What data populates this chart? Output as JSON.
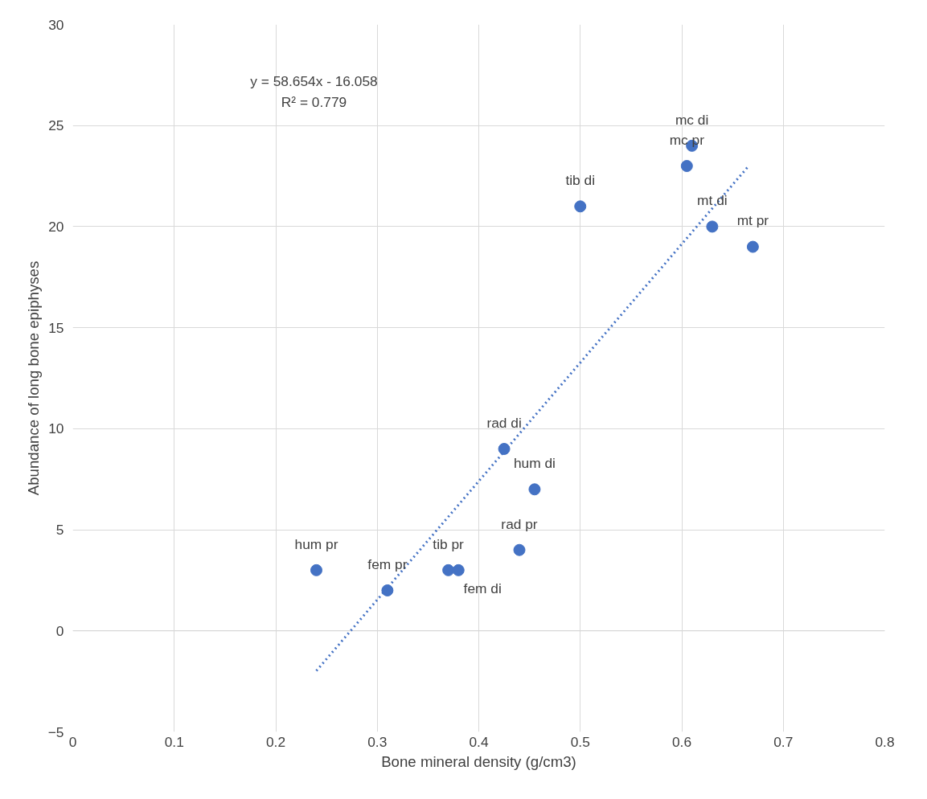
{
  "chart_data": {
    "type": "scatter",
    "xlabel": "Bone mineral density (g/cm3)",
    "ylabel": "Abundance of long bone epiphyses",
    "xlim": [
      0,
      0.8
    ],
    "xticks": [
      0,
      0.1,
      0.2,
      0.3,
      0.4,
      0.5,
      0.6,
      0.7,
      0.8
    ],
    "ylim": [
      -5,
      30
    ],
    "yticks": [
      -5,
      0,
      5,
      10,
      15,
      20,
      25,
      30
    ],
    "grid": true,
    "series": [
      {
        "marker": "circle",
        "color": "#4472c4",
        "x": [
          0.24,
          0.31,
          0.37,
          0.38,
          0.44,
          0.425,
          0.455,
          0.5,
          0.605,
          0.61,
          0.63,
          0.67
        ],
        "values": [
          3,
          2,
          3,
          3,
          4,
          9,
          7,
          21,
          23,
          24,
          20,
          19
        ]
      },
      {
        "type": "line",
        "color": "#4472c4",
        "line_style": "dotted",
        "x": [
          0.24,
          0.665
        ],
        "values": [
          -1.98,
          22.95
        ]
      }
    ],
    "annotations": [
      {
        "text": "hum pr",
        "x": 0.24,
        "y": 3
      },
      {
        "text": "fem pr",
        "x": 0.31,
        "y": 2
      },
      {
        "text": "tib pr",
        "x": 0.37,
        "y": 3
      },
      {
        "text": "fem di",
        "x": 0.38,
        "y": 3
      },
      {
        "text": "rad pr",
        "x": 0.44,
        "y": 4
      },
      {
        "text": "rad di",
        "x": 0.425,
        "y": 9
      },
      {
        "text": "hum di",
        "x": 0.455,
        "y": 7
      },
      {
        "text": "tib di",
        "x": 0.5,
        "y": 21
      },
      {
        "text": "mc pr",
        "x": 0.605,
        "y": 23
      },
      {
        "text": "mc di",
        "x": 0.61,
        "y": 24
      },
      {
        "text": "mt di",
        "x": 0.63,
        "y": 20
      },
      {
        "text": "mt pr",
        "x": 0.67,
        "y": 19
      },
      "y = 58.654x - 16.058",
      "R² = 0.779"
    ]
  }
}
